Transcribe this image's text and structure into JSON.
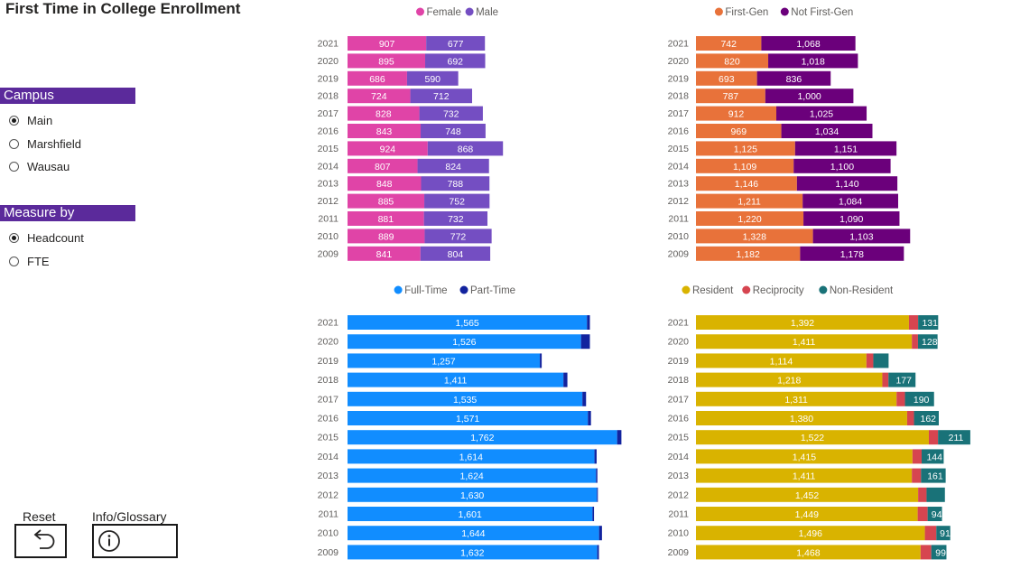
{
  "title": "First Time in College Enrollment",
  "slicers": {
    "campus": {
      "header": "Campus",
      "options": [
        {
          "label": "Main",
          "selected": true
        },
        {
          "label": "Marshfield",
          "selected": false
        },
        {
          "label": "Wausau",
          "selected": false
        }
      ]
    },
    "measure": {
      "header": "Measure by",
      "options": [
        {
          "label": "Headcount",
          "selected": true
        },
        {
          "label": "FTE",
          "selected": false
        }
      ]
    }
  },
  "buttons": {
    "reset_label": "Reset",
    "info_label": "Info/Glossary"
  },
  "chart_data": [
    {
      "type": "bar",
      "stacked": true,
      "orientation": "horizontal",
      "categories": [
        "2021",
        "2020",
        "2019",
        "2018",
        "2017",
        "2016",
        "2015",
        "2014",
        "2013",
        "2012",
        "2011",
        "2010",
        "2009"
      ],
      "series": [
        {
          "name": "Female",
          "color": "#e044a7",
          "values": [
            907,
            895,
            686,
            724,
            828,
            843,
            924,
            807,
            848,
            885,
            881,
            889,
            841
          ],
          "labels": [
            "907",
            "895",
            "686",
            "724",
            "828",
            "843",
            "924",
            "807",
            "848",
            "885",
            "881",
            "889",
            "841"
          ]
        },
        {
          "name": "Male",
          "color": "#744ec2",
          "values": [
            677,
            692,
            590,
            712,
            732,
            748,
            868,
            824,
            788,
            752,
            732,
            772,
            804
          ],
          "labels": [
            "677",
            "692",
            "590",
            "712",
            "732",
            "748",
            "868",
            "824",
            "788",
            "752",
            "732",
            "772",
            "804"
          ]
        }
      ],
      "legend": "top-center"
    },
    {
      "type": "bar",
      "stacked": true,
      "orientation": "horizontal",
      "categories": [
        "2021",
        "2020",
        "2019",
        "2018",
        "2017",
        "2016",
        "2015",
        "2014",
        "2013",
        "2012",
        "2011",
        "2010",
        "2009"
      ],
      "series": [
        {
          "name": "First-Gen",
          "color": "#e8723a",
          "values": [
            742,
            820,
            693,
            787,
            912,
            969,
            1125,
            1109,
            1146,
            1211,
            1220,
            1328,
            1182
          ],
          "labels": [
            "742",
            "820",
            "693",
            "787",
            "912",
            "969",
            "1,125",
            "1,109",
            "1,146",
            "1,211",
            "1,220",
            "1,328",
            "1,182"
          ]
        },
        {
          "name": "Not First-Gen",
          "color": "#6b007b",
          "values": [
            1068,
            1018,
            836,
            1000,
            1025,
            1034,
            1151,
            1100,
            1140,
            1084,
            1090,
            1103,
            1178
          ],
          "labels": [
            "1,068",
            "1,018",
            "836",
            "1,000",
            "1,025",
            "1,034",
            "1,151",
            "1,100",
            "1,140",
            "1,084",
            "1,090",
            "1,103",
            "1,178"
          ]
        }
      ],
      "legend": "top-center"
    },
    {
      "type": "bar",
      "stacked": true,
      "orientation": "horizontal",
      "categories": [
        "2021",
        "2020",
        "2019",
        "2018",
        "2017",
        "2016",
        "2015",
        "2014",
        "2013",
        "2012",
        "2011",
        "2010",
        "2009"
      ],
      "series": [
        {
          "name": "Full-Time",
          "color": "#118dff",
          "values": [
            1565,
            1526,
            1257,
            1411,
            1535,
            1571,
            1762,
            1614,
            1624,
            1630,
            1601,
            1644,
            1632
          ],
          "labels": [
            "1,565",
            "1,526",
            "1,257",
            "1,411",
            "1,535",
            "1,571",
            "1,762",
            "1,614",
            "1,624",
            "1,630",
            "1,601",
            "1,644",
            "1,632"
          ]
        },
        {
          "name": "Part-Time",
          "color": "#12239e",
          "values": [
            19,
            58,
            12,
            26,
            24,
            20,
            28,
            14,
            9,
            6,
            10,
            19,
            11
          ],
          "labels": [
            "",
            "",
            "",
            "",
            "",
            "",
            "",
            "",
            "",
            "",
            "",
            "",
            ""
          ]
        }
      ],
      "legend": "top-center"
    },
    {
      "type": "bar",
      "stacked": true,
      "orientation": "horizontal",
      "categories": [
        "2021",
        "2020",
        "2019",
        "2018",
        "2017",
        "2016",
        "2015",
        "2014",
        "2013",
        "2012",
        "2011",
        "2010",
        "2009"
      ],
      "series": [
        {
          "name": "Resident",
          "color": "#d9b300",
          "values": [
            1392,
            1411,
            1114,
            1218,
            1311,
            1380,
            1522,
            1415,
            1411,
            1452,
            1449,
            1496,
            1468
          ],
          "labels": [
            "1,392",
            "1,411",
            "1,114",
            "1,218",
            "1,311",
            "1,380",
            "1,522",
            "1,415",
            "1,411",
            "1,452",
            "1,449",
            "1,496",
            "1,468"
          ]
        },
        {
          "name": "Reciprocity",
          "color": "#d64550",
          "values": [
            60,
            40,
            45,
            40,
            55,
            45,
            60,
            60,
            60,
            55,
            65,
            75,
            70
          ],
          "labels": [
            "",
            "",
            "",
            "",
            "",
            "",
            "",
            "",
            "",
            "",
            "",
            "",
            ""
          ]
        },
        {
          "name": "Non-Resident",
          "color": "#197278",
          "values": [
            131,
            128,
            100,
            177,
            190,
            162,
            211,
            144,
            161,
            120,
            94,
            91,
            99
          ],
          "labels": [
            "131",
            "128",
            "",
            "177",
            "190",
            "162",
            "211",
            "144",
            "161",
            "",
            "94",
            "91",
            "99"
          ]
        }
      ],
      "legend": "top-center"
    }
  ]
}
